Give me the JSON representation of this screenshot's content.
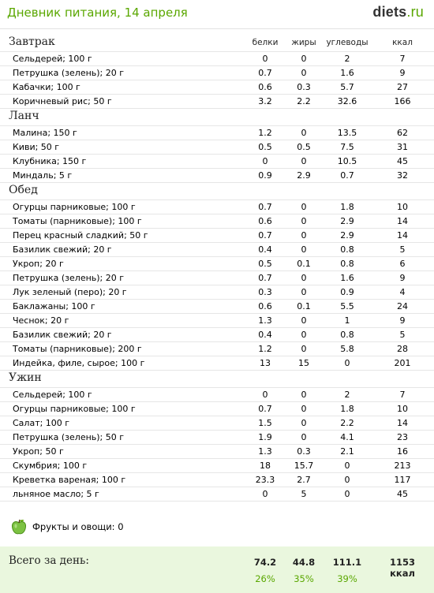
{
  "header": {
    "title": "Дневник питания, 14 апреля",
    "logo_main": "diets",
    "logo_ext": ".ru"
  },
  "columns": {
    "protein": "белки",
    "fat": "жиры",
    "carbs": "углеводы",
    "kcal": "ккал"
  },
  "meals": [
    {
      "name": "Завтрак",
      "items": [
        {
          "name": "Сельдерей; 100 г",
          "p": "0",
          "f": "0",
          "c": "2",
          "k": "7"
        },
        {
          "name": "Петрушка (зелень); 20 г",
          "p": "0.7",
          "f": "0",
          "c": "1.6",
          "k": "9"
        },
        {
          "name": "Кабачки; 100 г",
          "p": "0.6",
          "f": "0.3",
          "c": "5.7",
          "k": "27"
        },
        {
          "name": "Коричневый рис; 50 г",
          "p": "3.2",
          "f": "2.2",
          "c": "32.6",
          "k": "166"
        }
      ]
    },
    {
      "name": "Ланч",
      "items": [
        {
          "name": "Малина; 150 г",
          "p": "1.2",
          "f": "0",
          "c": "13.5",
          "k": "62"
        },
        {
          "name": "Киви; 50 г",
          "p": "0.5",
          "f": "0.5",
          "c": "7.5",
          "k": "31"
        },
        {
          "name": "Клубника; 150 г",
          "p": "0",
          "f": "0",
          "c": "10.5",
          "k": "45"
        },
        {
          "name": "Миндаль; 5 г",
          "p": "0.9",
          "f": "2.9",
          "c": "0.7",
          "k": "32"
        }
      ]
    },
    {
      "name": "Обед",
      "items": [
        {
          "name": "Огурцы парниковые; 100 г",
          "p": "0.7",
          "f": "0",
          "c": "1.8",
          "k": "10"
        },
        {
          "name": "Томаты (парниковые); 100 г",
          "p": "0.6",
          "f": "0",
          "c": "2.9",
          "k": "14"
        },
        {
          "name": "Перец красный сладкий; 50 г",
          "p": "0.7",
          "f": "0",
          "c": "2.9",
          "k": "14"
        },
        {
          "name": "Базилик свежий; 20 г",
          "p": "0.4",
          "f": "0",
          "c": "0.8",
          "k": "5"
        },
        {
          "name": "Укроп; 20 г",
          "p": "0.5",
          "f": "0.1",
          "c": "0.8",
          "k": "6"
        },
        {
          "name": "Петрушка (зелень); 20 г",
          "p": "0.7",
          "f": "0",
          "c": "1.6",
          "k": "9"
        },
        {
          "name": "Лук зеленый (перо); 20 г",
          "p": "0.3",
          "f": "0",
          "c": "0.9",
          "k": "4"
        },
        {
          "name": "Баклажаны; 100 г",
          "p": "0.6",
          "f": "0.1",
          "c": "5.5",
          "k": "24"
        },
        {
          "name": "Чеснок; 20 г",
          "p": "1.3",
          "f": "0",
          "c": "1",
          "k": "9"
        },
        {
          "name": "Базилик свежий; 20 г",
          "p": "0.4",
          "f": "0",
          "c": "0.8",
          "k": "5"
        },
        {
          "name": "Томаты (парниковые); 200 г",
          "p": "1.2",
          "f": "0",
          "c": "5.8",
          "k": "28"
        },
        {
          "name": "Индейка, филе, сырое; 100 г",
          "p": "13",
          "f": "15",
          "c": "0",
          "k": "201"
        }
      ]
    },
    {
      "name": "Ужин",
      "items": [
        {
          "name": "Сельдерей; 100 г",
          "p": "0",
          "f": "0",
          "c": "2",
          "k": "7"
        },
        {
          "name": "Огурцы парниковые; 100 г",
          "p": "0.7",
          "f": "0",
          "c": "1.8",
          "k": "10"
        },
        {
          "name": "Салат; 100 г",
          "p": "1.5",
          "f": "0",
          "c": "2.2",
          "k": "14"
        },
        {
          "name": "Петрушка (зелень); 50 г",
          "p": "1.9",
          "f": "0",
          "c": "4.1",
          "k": "23"
        },
        {
          "name": "Укроп; 50 г",
          "p": "1.3",
          "f": "0.3",
          "c": "2.1",
          "k": "16"
        },
        {
          "name": "Скумбрия; 100 г",
          "p": "18",
          "f": "15.7",
          "c": "0",
          "k": "213"
        },
        {
          "name": "Креветка вареная; 100 г",
          "p": "23.3",
          "f": "2.7",
          "c": "0",
          "k": "117"
        },
        {
          "name": "льняное масло; 5 г",
          "p": "0",
          "f": "5",
          "c": "0",
          "k": "45"
        }
      ]
    }
  ],
  "fruit": {
    "label": "Фрукты и овощи: 0",
    "icon": "green-apple-icon"
  },
  "total": {
    "label": "Всего за день:",
    "protein": "74.2",
    "fat": "44.8",
    "carbs": "111.1",
    "kcal": "1153 ккал",
    "protein_pct": "26%",
    "fat_pct": "35%",
    "carbs_pct": "39%"
  },
  "colors": {
    "accent": "#5aa700",
    "total_bg": "#eaf7de",
    "row_line": "#e6e6e6"
  }
}
